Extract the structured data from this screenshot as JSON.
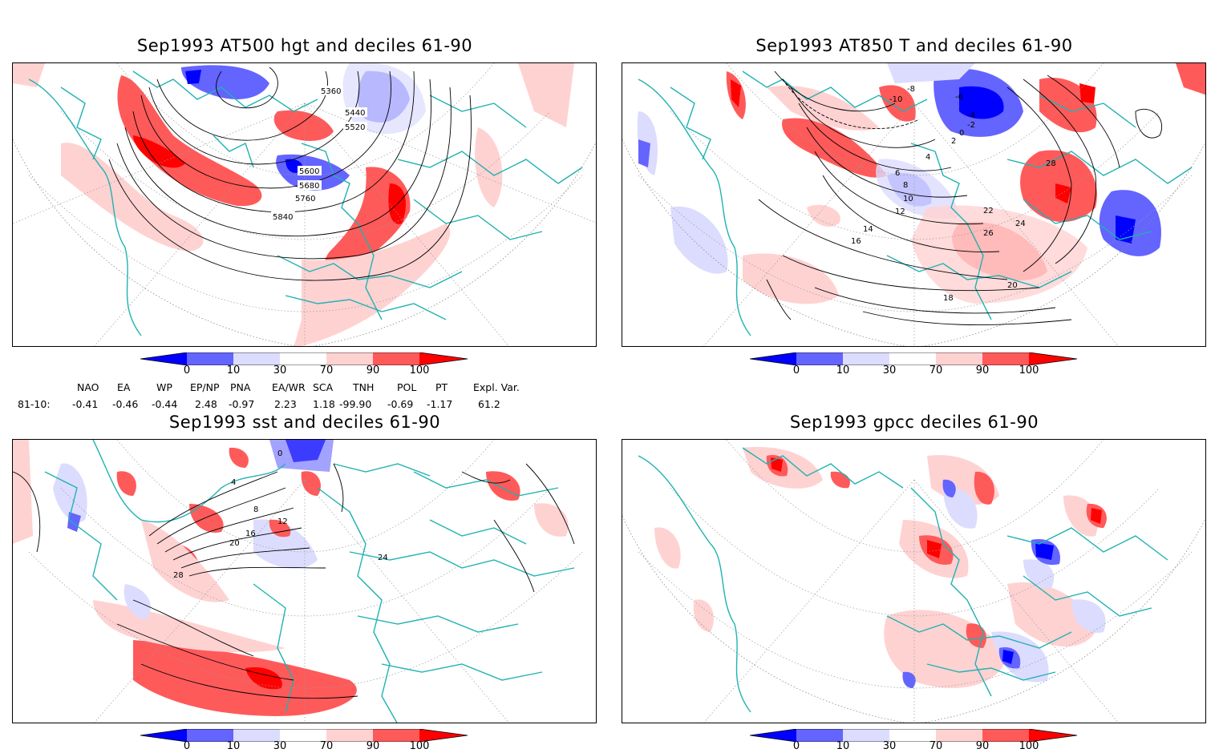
{
  "panels": [
    {
      "title": "Sep1993 AT500 hgt and deciles 61-90",
      "contour_labels": [
        "5360",
        "5440",
        "5520",
        "5600",
        "5680",
        "5760",
        "5840"
      ]
    },
    {
      "title": "Sep1993 AT850 T and deciles 61-90",
      "contour_labels": [
        "-10",
        "-8",
        "-6",
        "-4",
        "-2",
        "0",
        "2",
        "4",
        "6",
        "8",
        "10",
        "12",
        "14",
        "16",
        "18",
        "20",
        "22",
        "24",
        "26",
        "28"
      ]
    },
    {
      "title": "Sep1993 sst and deciles 61-90",
      "contour_labels": [
        "0",
        "4",
        "8",
        "12",
        "16",
        "20",
        "24",
        "28"
      ]
    },
    {
      "title": "Sep1993 gpcc deciles 61-90",
      "contour_labels": []
    }
  ],
  "colorbar": {
    "ticks": [
      "0",
      "10",
      "30",
      "70",
      "90",
      "100"
    ],
    "colors": [
      "#0000ff",
      "#6464ff",
      "#dcdcff",
      "#ffffff",
      "#ffd2d2",
      "#ff5a5a",
      "#ff0000"
    ]
  },
  "indices": {
    "row_label": "81-10:",
    "headers": [
      "NAO",
      "EA",
      "WP",
      "EP/NP",
      "PNA",
      "EA/WR",
      "SCA",
      "TNH",
      "POL",
      "PT",
      "Expl. Var."
    ],
    "values": [
      "-0.41",
      "-0.46",
      "-0.44",
      "2.48",
      "-0.97",
      "2.23",
      "1.18",
      "-99.90",
      "-0.69",
      "-1.17",
      "61.2"
    ]
  },
  "map_colors": {
    "coast": "#20b2b2",
    "contour": "#000000",
    "grid": "#9a9a9a"
  }
}
